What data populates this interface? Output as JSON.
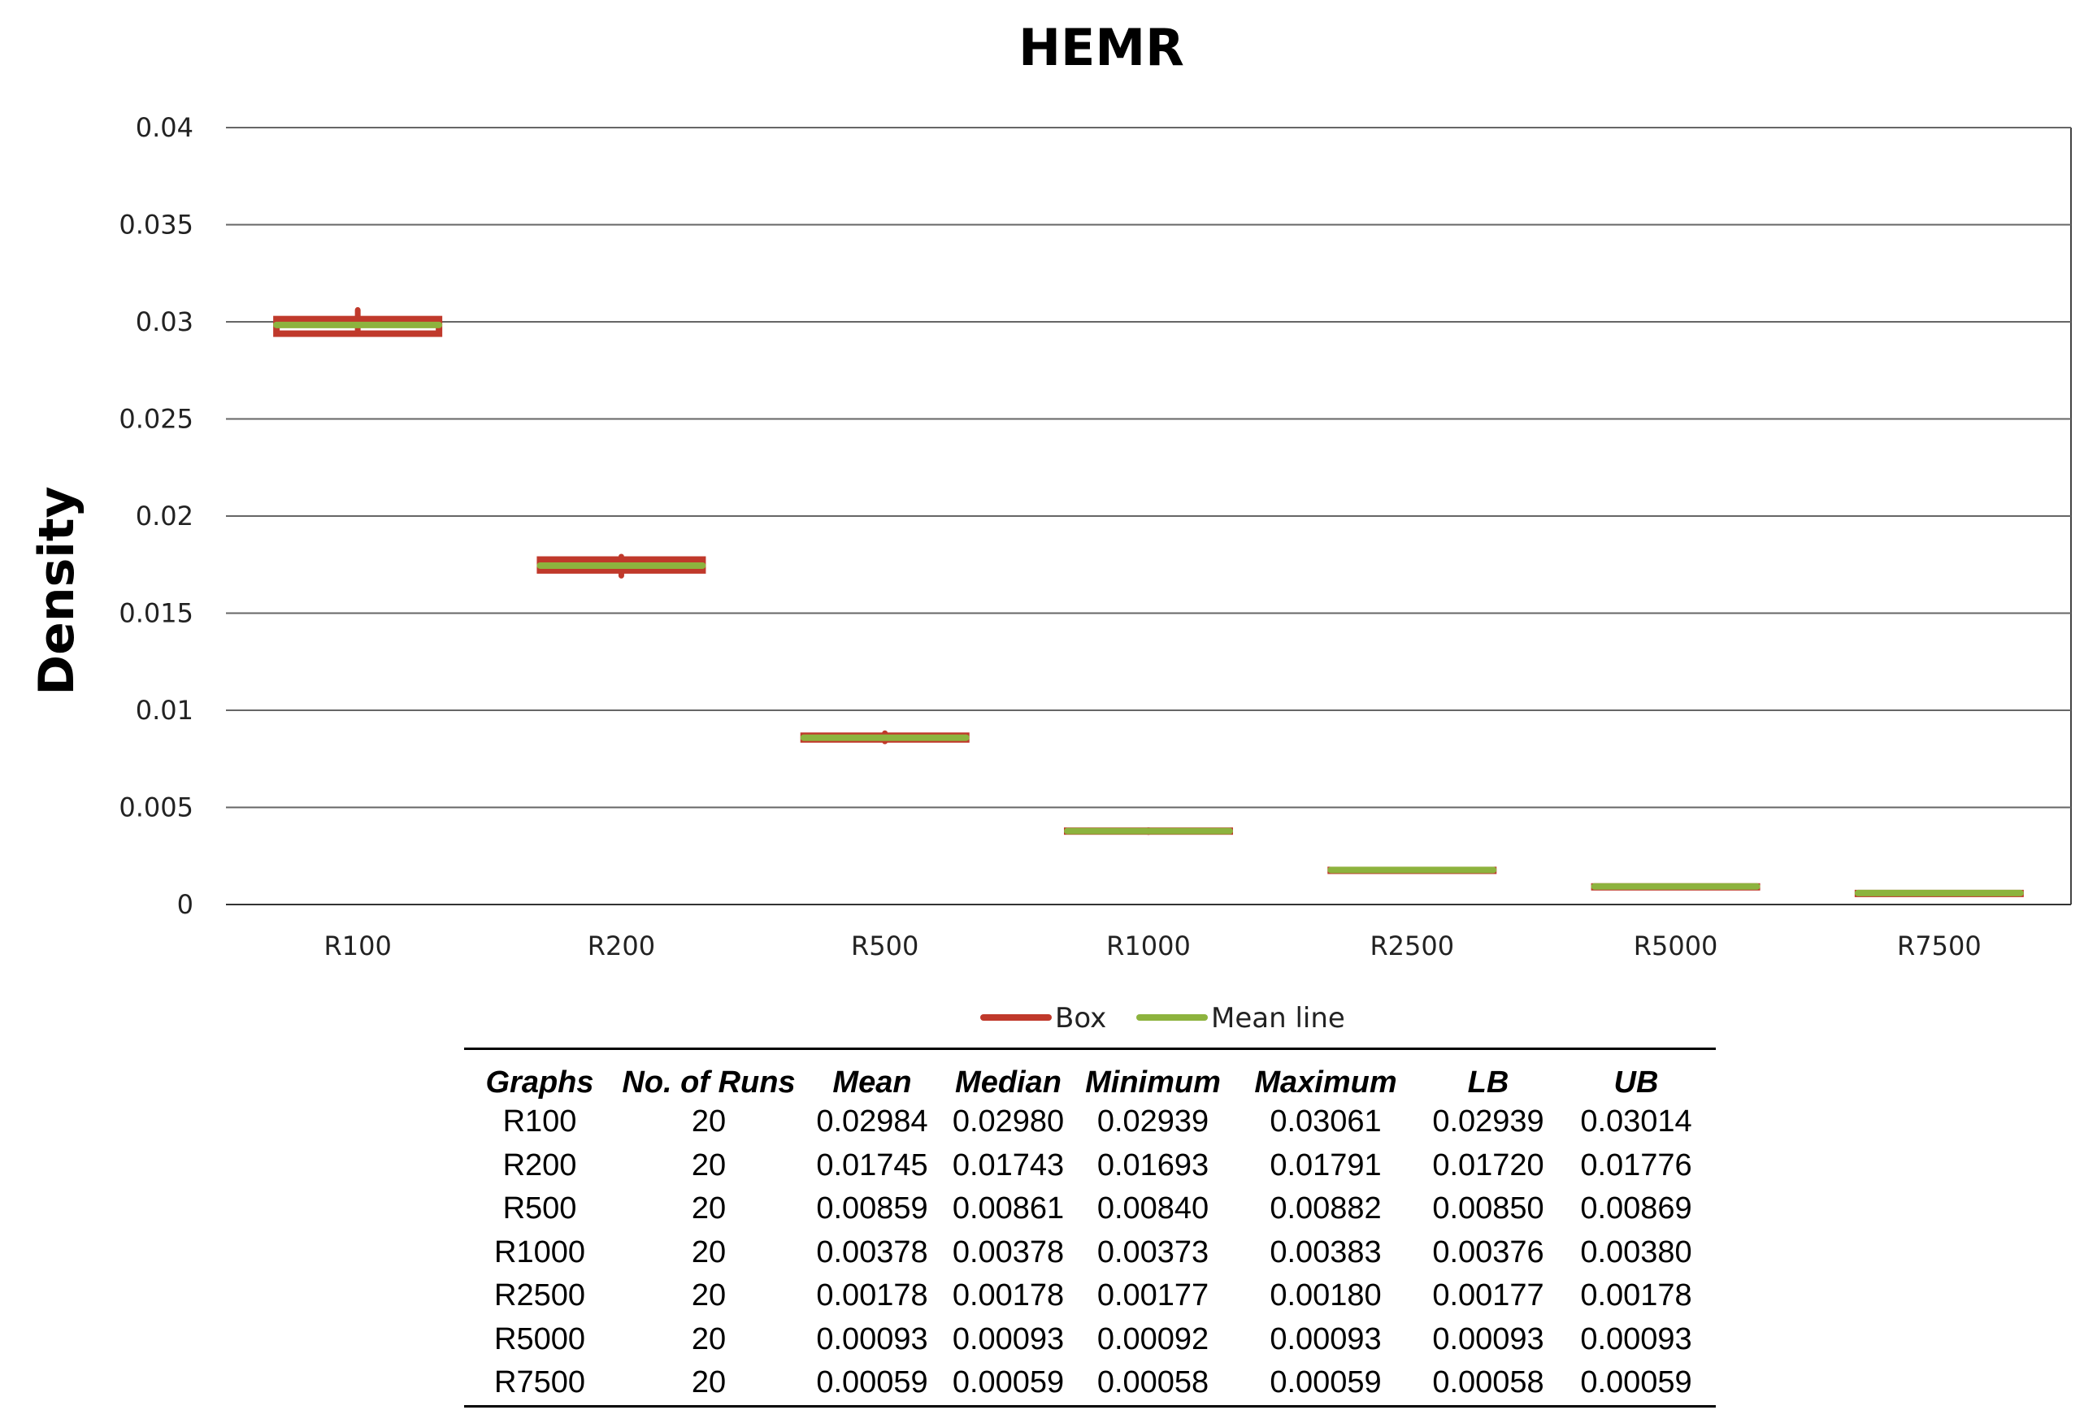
{
  "chart_data": {
    "type": "box",
    "title": "HEMR",
    "xlabel": "",
    "ylabel": "Density",
    "ylim": [
      0,
      0.04
    ],
    "yticks": [
      "0",
      "0.005",
      "0.01",
      "0.015",
      "0.02",
      "0.025",
      "0.03",
      "0.035",
      "0.04"
    ],
    "grid": true,
    "legend_position": "bottom",
    "categories": [
      "R100",
      "R200",
      "R500",
      "R1000",
      "R2500",
      "R5000",
      "R7500"
    ],
    "series": [
      {
        "name": "Box",
        "color": "#c0392b",
        "lower": [
          0.02939,
          0.0172,
          0.0085,
          0.00376,
          0.00177,
          0.00093,
          0.00058
        ],
        "upper": [
          0.03014,
          0.01776,
          0.00869,
          0.0038,
          0.00178,
          0.00093,
          0.00059
        ],
        "min": [
          0.02939,
          0.01693,
          0.0084,
          0.00373,
          0.00177,
          0.00092,
          0.00058
        ],
        "max": [
          0.03061,
          0.01791,
          0.00882,
          0.00383,
          0.0018,
          0.00093,
          0.00059
        ]
      },
      {
        "name": "Mean line",
        "color": "#8db33e",
        "values": [
          0.02984,
          0.01745,
          0.00859,
          0.00378,
          0.00178,
          0.00093,
          0.00059
        ]
      }
    ]
  },
  "table": {
    "headers": [
      "Graphs",
      "No. of Runs",
      "Mean",
      "Median",
      "Minimum",
      "Maximum",
      "LB",
      "UB"
    ],
    "rows": [
      [
        "R100",
        "20",
        "0.02984",
        "0.02980",
        "0.02939",
        "0.03061",
        "0.02939",
        "0.03014"
      ],
      [
        "R200",
        "20",
        "0.01745",
        "0.01743",
        "0.01693",
        "0.01791",
        "0.01720",
        "0.01776"
      ],
      [
        "R500",
        "20",
        "0.00859",
        "0.00861",
        "0.00840",
        "0.00882",
        "0.00850",
        "0.00869"
      ],
      [
        "R1000",
        "20",
        "0.00378",
        "0.00378",
        "0.00373",
        "0.00383",
        "0.00376",
        "0.00380"
      ],
      [
        "R2500",
        "20",
        "0.00178",
        "0.00178",
        "0.00177",
        "0.00180",
        "0.00177",
        "0.00178"
      ],
      [
        "R5000",
        "20",
        "0.00093",
        "0.00093",
        "0.00092",
        "0.00093",
        "0.00093",
        "0.00093"
      ],
      [
        "R7500",
        "20",
        "0.00059",
        "0.00059",
        "0.00058",
        "0.00059",
        "0.00058",
        "0.00059"
      ]
    ]
  }
}
